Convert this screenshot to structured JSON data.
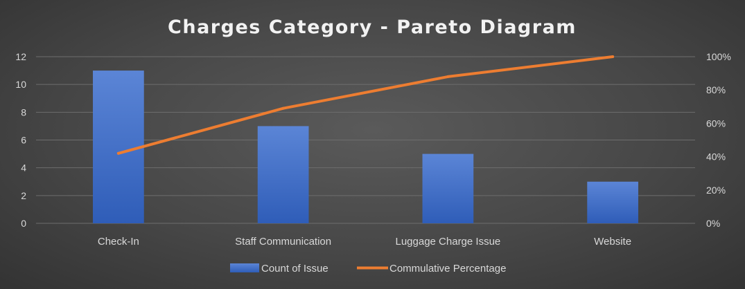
{
  "colors": {
    "bar": "#4472c4",
    "line": "#ed7d31",
    "grid": "#6e6e6e",
    "text": "#d9d9d9",
    "title": "#f2f2f2"
  },
  "chart_data": {
    "type": "bar",
    "title": "Charges Category - Pareto Diagram",
    "xlabel": "",
    "ylabel": "",
    "categories": [
      "Check-In",
      "Staff Communication",
      "Luggage Charge Issue",
      "Website"
    ],
    "ylim": [
      0,
      12
    ],
    "y_ticks": [
      "0",
      "2",
      "4",
      "6",
      "8",
      "10",
      "12"
    ],
    "y2lim": [
      0,
      1
    ],
    "y2_ticks": [
      "0%",
      "20%",
      "40%",
      "60%",
      "80%",
      "100%"
    ],
    "grid": true,
    "legend_position": "bottom",
    "series": [
      {
        "name": "Count of Issue",
        "type": "bar",
        "axis": "left",
        "values": [
          11,
          7,
          5,
          3
        ]
      },
      {
        "name": "Commulative Percentage",
        "type": "line",
        "axis": "right",
        "values": [
          0.42,
          0.69,
          0.88,
          1.0
        ]
      }
    ]
  }
}
